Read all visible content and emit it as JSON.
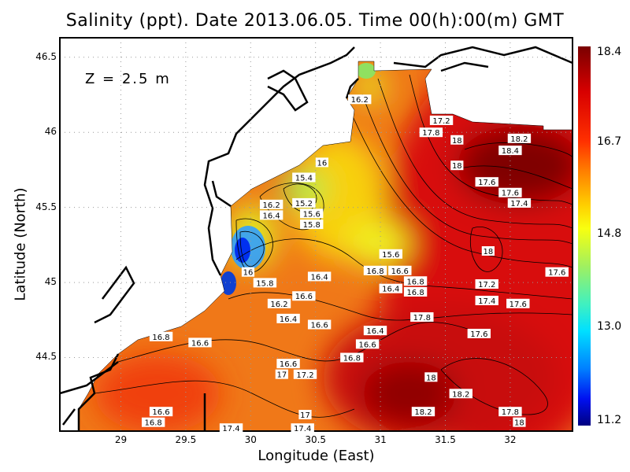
{
  "title": "Salinity (ppt). Date 2013.06.05. Time 00(h):00(m) GMT",
  "depth_label": "Z = 2.5 m",
  "chart_data": {
    "type": "heatmap",
    "title": "Salinity (ppt). Date 2013.06.05. Time 00(h):00(m) GMT",
    "xlabel": "Longitude (East)",
    "ylabel": "Latitude (North)",
    "xlim": [
      28.53,
      32.48
    ],
    "ylim": [
      44.01,
      46.63
    ],
    "x_ticks": [
      "29",
      "29.5",
      "30",
      "30.5",
      "31",
      "31.5",
      "32"
    ],
    "y_ticks": [
      "44.5",
      "45",
      "45.5",
      "46",
      "46.5"
    ],
    "grid": true,
    "colorbar": {
      "min": 11.2,
      "max": 18.4,
      "tick_labels": [
        "18.4",
        "16.7",
        "14.8",
        "13.0",
        "11.2"
      ],
      "colormap": "jet"
    },
    "colors": {
      "land": "#ffffff",
      "coast": "#000000",
      "contour": "#000000"
    },
    "contour_labels": [
      {
        "text": "16.2",
        "lon": 30.84,
        "lat": 46.22
      },
      {
        "text": "17.2",
        "lon": 31.47,
        "lat": 46.08
      },
      {
        "text": "17.8",
        "lon": 31.39,
        "lat": 46.0
      },
      {
        "text": "18",
        "lon": 31.59,
        "lat": 45.95
      },
      {
        "text": "18.2",
        "lon": 32.07,
        "lat": 45.96
      },
      {
        "text": "18.4",
        "lon": 32.0,
        "lat": 45.88
      },
      {
        "text": "16",
        "lon": 30.55,
        "lat": 45.8
      },
      {
        "text": "18",
        "lon": 31.59,
        "lat": 45.78
      },
      {
        "text": "15.4",
        "lon": 30.41,
        "lat": 45.7
      },
      {
        "text": "17.6",
        "lon": 31.82,
        "lat": 45.67
      },
      {
        "text": "17.6",
        "lon": 32.0,
        "lat": 45.62
      },
      {
        "text": "17.4",
        "lon": 32.07,
        "lat": 45.54
      },
      {
        "text": "15.2",
        "lon": 30.41,
        "lat": 45.53
      },
      {
        "text": "16.2",
        "lon": 30.16,
        "lat": 45.52
      },
      {
        "text": "16.4",
        "lon": 30.16,
        "lat": 45.47
      },
      {
        "text": "15.6",
        "lon": 30.47,
        "lat": 45.47
      },
      {
        "text": "15.8",
        "lon": 30.47,
        "lat": 45.44
      },
      {
        "text": "18",
        "lon": 31.83,
        "lat": 45.21
      },
      {
        "text": "15.6",
        "lon": 31.08,
        "lat": 45.19
      },
      {
        "text": "16.8",
        "lon": 30.96,
        "lat": 45.08
      },
      {
        "text": "16.6",
        "lon": 31.15,
        "lat": 45.08
      },
      {
        "text": "16",
        "lon": 29.98,
        "lat": 45.07
      },
      {
        "text": "15.8",
        "lon": 30.11,
        "lat": 45.04
      },
      {
        "text": "16.4",
        "lon": 30.53,
        "lat": 45.04
      },
      {
        "text": "16.8",
        "lon": 31.27,
        "lat": 45.02
      },
      {
        "text": "16.8",
        "lon": 31.27,
        "lat": 44.99
      },
      {
        "text": "16.4",
        "lon": 31.08,
        "lat": 44.96
      },
      {
        "text": "17.2",
        "lon": 31.82,
        "lat": 44.99
      },
      {
        "text": "17.6",
        "lon": 32.36,
        "lat": 45.07
      },
      {
        "text": "16.6",
        "lon": 30.41,
        "lat": 44.91
      },
      {
        "text": "17.4",
        "lon": 31.82,
        "lat": 44.88
      },
      {
        "text": "16.2",
        "lon": 30.22,
        "lat": 44.86
      },
      {
        "text": "17.6",
        "lon": 32.06,
        "lat": 44.86
      },
      {
        "text": "17.8",
        "lon": 31.32,
        "lat": 44.77
      },
      {
        "text": "16.4",
        "lon": 30.29,
        "lat": 44.76
      },
      {
        "text": "16.6",
        "lon": 30.53,
        "lat": 44.72
      },
      {
        "text": "16.4",
        "lon": 30.96,
        "lat": 44.68
      },
      {
        "text": "17.6",
        "lon": 31.76,
        "lat": 44.66
      },
      {
        "text": "16.8",
        "lon": 29.31,
        "lat": 44.64
      },
      {
        "text": "16.6",
        "lon": 29.61,
        "lat": 44.6
      },
      {
        "text": "16.6",
        "lon": 30.9,
        "lat": 44.59
      },
      {
        "text": "16.8",
        "lon": 30.78,
        "lat": 44.5
      },
      {
        "text": "16.6",
        "lon": 30.29,
        "lat": 44.46
      },
      {
        "text": "17",
        "lon": 30.24,
        "lat": 44.41
      },
      {
        "text": "17.2",
        "lon": 30.42,
        "lat": 44.42
      },
      {
        "text": "18",
        "lon": 31.39,
        "lat": 44.37
      },
      {
        "text": "18.2",
        "lon": 31.62,
        "lat": 44.26
      },
      {
        "text": "16.6",
        "lon": 29.31,
        "lat": 44.14
      },
      {
        "text": "16.8",
        "lon": 29.25,
        "lat": 44.09
      },
      {
        "text": "18.2",
        "lon": 31.33,
        "lat": 44.14
      },
      {
        "text": "17.8",
        "lon": 32.0,
        "lat": 44.14
      },
      {
        "text": "18",
        "lon": 32.07,
        "lat": 44.08
      },
      {
        "text": "17",
        "lon": 30.42,
        "lat": 44.12
      },
      {
        "text": "17.4",
        "lon": 29.85,
        "lat": 44.03
      },
      {
        "text": "17.4",
        "lon": 30.4,
        "lat": 44.03
      }
    ]
  }
}
